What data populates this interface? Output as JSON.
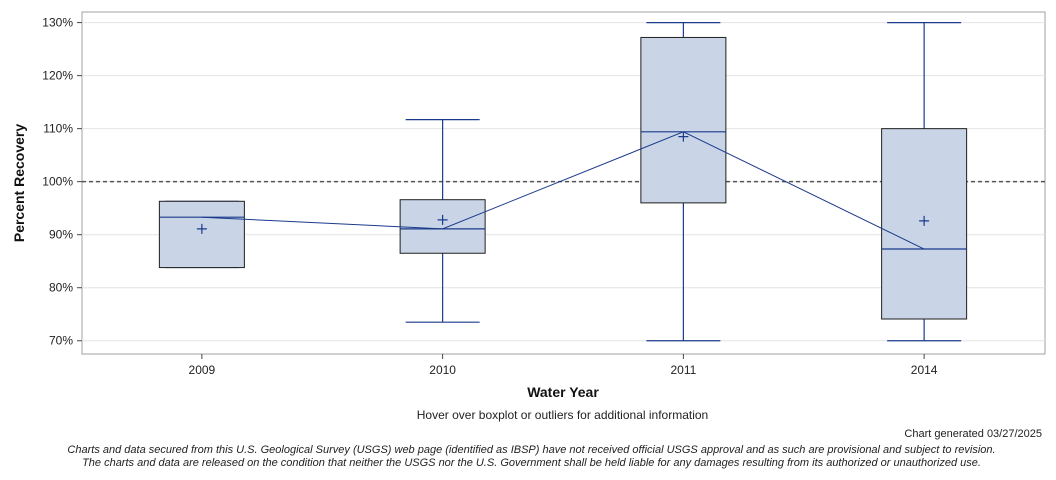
{
  "chart_data": {
    "type": "boxplot",
    "xlabel": "Water Year",
    "ylabel": "Percent Recovery",
    "categories": [
      "2009",
      "2010",
      "2011",
      "2014"
    ],
    "y_ticks": [
      "70%",
      "80%",
      "90%",
      "100%",
      "110%",
      "120%",
      "130%"
    ],
    "y_tick_values": [
      70,
      80,
      90,
      100,
      110,
      120,
      130
    ],
    "ylim": [
      67.5,
      132
    ],
    "reference_line": 100,
    "boxes": [
      {
        "category": "2009",
        "whisker_low": 83.8,
        "q1": 83.8,
        "median": 93.3,
        "q3": 96.3,
        "whisker_high": 96.3,
        "mean": 91.1
      },
      {
        "category": "2010",
        "whisker_low": 73.5,
        "q1": 86.5,
        "median": 91.1,
        "q3": 96.6,
        "whisker_high": 111.7,
        "mean": 92.8
      },
      {
        "category": "2011",
        "whisker_low": 70.0,
        "q1": 96.0,
        "median": 109.4,
        "q3": 127.2,
        "whisker_high": 130.0,
        "mean": 108.5
      },
      {
        "category": "2014",
        "whisker_low": 70.0,
        "q1": 74.1,
        "median": 87.3,
        "q3": 110.0,
        "whisker_high": 130.0,
        "mean": 92.6
      }
    ],
    "colors": {
      "box_fill": "#c9d5e6",
      "box_stroke": "#1f1f1f",
      "whisker": "#1a3a8c",
      "median_line": "#1a3a8c",
      "reference": "#555555"
    },
    "grid": true
  },
  "footer": {
    "hover_note": "Hover over boxplot or outliers for additional information",
    "generated": "Chart generated 03/27/2025",
    "disclaimer1": "Charts and data secured from this U.S. Geological Survey (USGS) web page (identified as IBSP) have not received official USGS approval and as such are provisional and subject to revision.",
    "disclaimer2": "The charts and data are released on the condition that neither the USGS nor the U.S. Government shall be held liable for any damages resulting from its authorized or unauthorized use."
  }
}
